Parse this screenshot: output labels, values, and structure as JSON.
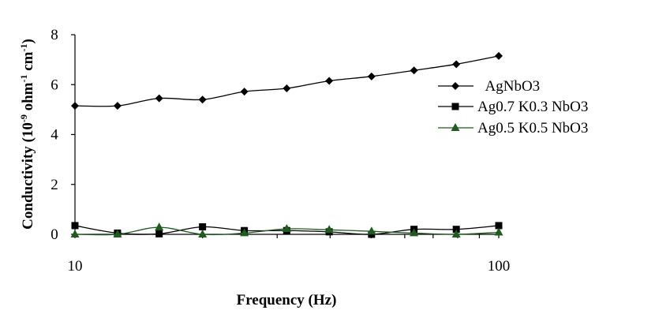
{
  "chart_data": {
    "type": "line",
    "title": "",
    "xlabel": "Frequency (Hz)",
    "ylabel_main": "Conductivity (10",
    "ylabel_sup1": "-9",
    "ylabel_mid": " ohm",
    "ylabel_sup2": "-1",
    "ylabel_end": " cm",
    "ylabel_sup3": "-1",
    "ylabel_close": ")",
    "x_scale": "log",
    "xlim": [
      10,
      100
    ],
    "ylim": [
      0,
      8
    ],
    "x_ticks": [
      10,
      100
    ],
    "x_tick_labels": [
      "10",
      "100"
    ],
    "y_ticks": [
      0,
      2,
      4,
      6,
      8
    ],
    "y_tick_labels": [
      "0",
      "2",
      "4",
      "6",
      "8"
    ],
    "grid": false,
    "legend_position": "right",
    "series": [
      {
        "name": "AgNbO3",
        "marker": "diamond",
        "color": "#000000",
        "x": [
          10,
          12.6,
          15.8,
          20,
          25.1,
          31.6,
          39.8,
          50.1,
          63.1,
          79.4,
          100
        ],
        "y": [
          5.15,
          5.15,
          5.45,
          5.4,
          5.72,
          5.85,
          6.15,
          6.33,
          6.57,
          6.82,
          7.15
        ]
      },
      {
        "name": "Ag0.7 K0.3 NbO3",
        "marker": "square",
        "color": "#000000",
        "x": [
          10,
          12.6,
          15.8,
          20,
          25.1,
          31.6,
          39.8,
          50.1,
          63.1,
          79.4,
          100
        ],
        "y": [
          0.35,
          0.05,
          0.02,
          0.3,
          0.15,
          0.15,
          0.1,
          0.0,
          0.2,
          0.2,
          0.35
        ]
      },
      {
        "name": "Ag0.5 K0.5 NbO3",
        "marker": "triangle",
        "color": "#1f5a1f",
        "x": [
          10,
          12.6,
          15.8,
          20,
          25.1,
          31.6,
          39.8,
          50.1,
          63.1,
          79.4,
          100
        ],
        "y": [
          0.0,
          0.0,
          0.28,
          0.0,
          0.05,
          0.22,
          0.18,
          0.12,
          0.05,
          0.0,
          0.08
        ]
      }
    ]
  }
}
